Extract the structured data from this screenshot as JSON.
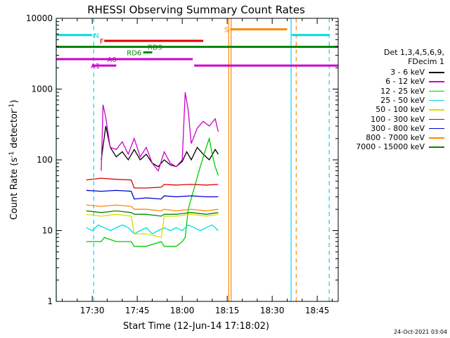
{
  "chart_data": {
    "type": "line",
    "title": "RHESSI Observing Summary Count Rates",
    "xlabel": "Start Time (12-Jun-14 17:18:02)",
    "ylabel_main": "Count Rate (s",
    "ylabel_sup1": "-1",
    "ylabel_mid": " detector",
    "ylabel_sup2": "-1",
    "ylabel_end": ")",
    "x_unit": "minutes after 17:18:02",
    "xlim": [
      0,
      94
    ],
    "ylim": [
      1,
      10000
    ],
    "y_scale": "log",
    "x_ticks": [
      {
        "value": 12,
        "label": "17:30"
      },
      {
        "value": 27,
        "label": "17:45"
      },
      {
        "value": 42,
        "label": "18:00"
      },
      {
        "value": 57,
        "label": "18:15"
      },
      {
        "value": 72,
        "label": "18:30"
      },
      {
        "value": 87,
        "label": "18:45"
      }
    ],
    "y_ticks": [
      {
        "value": 1,
        "label": "1"
      },
      {
        "value": 10,
        "label": "10"
      },
      {
        "value": 100,
        "label": "100"
      },
      {
        "value": 1000,
        "label": "1000"
      },
      {
        "value": 10000,
        "label": "10000"
      }
    ],
    "legend": {
      "placement": "right",
      "header": [
        "Det 1,3,4,5,6,9,",
        "FDecim 1"
      ]
    },
    "series": [
      {
        "name": "3 - 6 keV",
        "color": "#000000",
        "x": [
          15.0,
          16.5,
          18,
          20,
          22,
          24,
          26,
          28,
          30,
          32,
          34,
          36,
          38,
          40,
          42,
          43.5,
          45,
          47,
          49,
          51,
          53,
          54
        ],
        "y": [
          100,
          300,
          150,
          110,
          130,
          100,
          140,
          100,
          120,
          90,
          80,
          100,
          85,
          80,
          95,
          130,
          100,
          150,
          120,
          100,
          140,
          120
        ]
      },
      {
        "name": "6 - 12 keV",
        "color": "#cc00cc",
        "x": [
          15.0,
          15.6,
          16.5,
          18,
          20,
          22,
          24,
          26,
          28,
          30,
          32,
          34,
          36,
          38,
          40,
          42,
          43,
          44,
          45,
          47,
          49,
          51,
          53,
          54
        ],
        "y": [
          70,
          600,
          400,
          150,
          140,
          180,
          120,
          200,
          110,
          150,
          90,
          70,
          130,
          90,
          80,
          100,
          900,
          500,
          170,
          280,
          350,
          300,
          380,
          250
        ]
      },
      {
        "name": "12 - 25 keV",
        "color": "#00cc00",
        "x": [
          10,
          11,
          15,
          16,
          20,
          25,
          26,
          30,
          35,
          36,
          40,
          42,
          43,
          44,
          46,
          48,
          50,
          51,
          52,
          53,
          54
        ],
        "y": [
          7,
          7,
          7,
          8,
          7,
          7,
          6,
          6,
          7,
          6,
          6,
          7,
          8,
          20,
          40,
          80,
          150,
          200,
          120,
          80,
          60
        ]
      },
      {
        "name": "25 - 50 keV",
        "color": "#00dddd",
        "x": [
          10,
          12,
          14,
          16,
          18,
          20,
          22,
          24,
          25,
          26,
          28,
          30,
          32,
          34,
          36,
          38,
          40,
          42,
          44,
          46,
          48,
          50,
          52,
          54
        ],
        "y": [
          11,
          10,
          12,
          11,
          10,
          11,
          12,
          11,
          10,
          9,
          10,
          11,
          9,
          10,
          11,
          10,
          11,
          10,
          12,
          11,
          10,
          11,
          12,
          10
        ]
      },
      {
        "name": "50 - 100 keV",
        "color": "#dddd00",
        "x": [
          10,
          15,
          20,
          25,
          26,
          30,
          35,
          36,
          40,
          45,
          50,
          54
        ],
        "y": [
          17,
          16,
          17,
          16,
          9,
          9,
          8,
          16,
          16,
          17,
          16,
          17
        ]
      },
      {
        "name": "100 - 300 keV",
        "color": "#dd0000",
        "x": [
          10,
          15,
          20,
          25,
          26,
          30,
          35,
          36,
          40,
          45,
          50,
          54
        ],
        "y": [
          52,
          55,
          53,
          52,
          40,
          40,
          41,
          45,
          44,
          45,
          44,
          45
        ]
      },
      {
        "name": "300 - 800 keV",
        "color": "#0000cc",
        "x": [
          10,
          15,
          20,
          25,
          26,
          30,
          35,
          36,
          40,
          45,
          50,
          54
        ],
        "y": [
          37,
          36,
          37,
          36,
          28,
          29,
          28,
          31,
          30,
          31,
          30,
          30
        ]
      },
      {
        "name": "800 - 7000 keV",
        "color": "#ff8800",
        "x": [
          10,
          15,
          20,
          25,
          26,
          30,
          35,
          36,
          40,
          45,
          50,
          54
        ],
        "y": [
          23,
          22,
          23,
          22,
          20,
          20,
          19,
          20,
          19,
          20,
          19,
          20
        ]
      },
      {
        "name": "7000 - 15000 keV",
        "color": "#008800",
        "x": [
          10,
          15,
          20,
          25,
          26,
          30,
          35,
          36,
          40,
          45,
          50,
          54
        ],
        "y": [
          19,
          18,
          19,
          18,
          17,
          17,
          16,
          17,
          17,
          18,
          17,
          18
        ]
      }
    ],
    "flag_bars": [
      {
        "label": "N",
        "color": "#00dddd",
        "x": [
          0,
          12
        ],
        "y": 5800,
        "label_x": 12.5
      },
      {
        "label": "N",
        "color": "#00dddd",
        "x": [
          78.5,
          91
        ],
        "y": 5800,
        "label_x": null
      },
      {
        "label": "S",
        "color": "#ff8800",
        "x": [
          58,
          77
        ],
        "y": 7000,
        "label_x": 56
      },
      {
        "label": "F",
        "color": "#dd0000",
        "x": [
          16,
          49
        ],
        "y": 4800,
        "label_x": 14.5
      },
      {
        "label": "RD9",
        "color": "#008800",
        "x": [
          0,
          94
        ],
        "y": 3950,
        "label_x": 30.5
      },
      {
        "label": "RD6",
        "color": "#008800",
        "x": [
          29,
          32
        ],
        "y": 3300,
        "label_x": 23.5
      },
      {
        "label": "A0",
        "color": "#cc00cc",
        "x": [
          0,
          45.5
        ],
        "y": 2650,
        "label_x": 17
      },
      {
        "label": "A1",
        "color": "#cc00cc",
        "x": [
          12,
          20
        ],
        "y": 2150,
        "label_x": 11.5
      },
      {
        "label": "",
        "color": "#cc00cc",
        "x": [
          46,
          94
        ],
        "y": 2150,
        "label_x": null
      }
    ],
    "vertical_lines": [
      {
        "x": 0,
        "color": "#00dddd",
        "style": "solid"
      },
      {
        "x": 12.5,
        "color": "#00dddd",
        "style": "dashed"
      },
      {
        "x": 57.5,
        "color": "#ff8800",
        "style": "solid"
      },
      {
        "x": 58.3,
        "color": "#ff8800",
        "style": "solid"
      },
      {
        "x": 78.3,
        "color": "#00dddd",
        "style": "solid"
      },
      {
        "x": 80,
        "color": "#ff8800",
        "style": "dashed"
      },
      {
        "x": 91,
        "color": "#00dddd",
        "style": "dashed"
      }
    ],
    "timestamp": "24-Oct-2021 03:04"
  }
}
